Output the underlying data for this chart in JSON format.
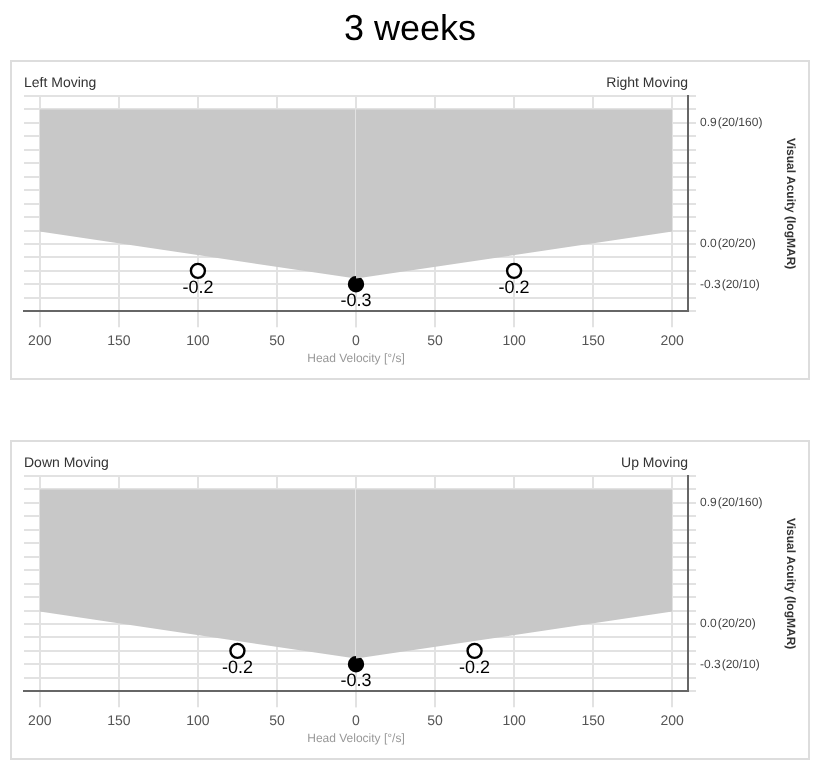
{
  "chart_data": [
    {
      "type": "scatter",
      "xlabel": "Head Velocity [°/s]",
      "annotations": [
        "Left Moving"
      ],
      "xlim": [
        210,
        0
      ],
      "xticks": [
        200,
        150,
        100,
        50,
        0
      ],
      "ylim": [
        -0.5,
        1.1
      ],
      "yticks": [
        {
          "value": -0.5,
          "label": null
        },
        {
          "value": -0.4,
          "label": null
        },
        {
          "value": -0.3,
          "label": null
        },
        {
          "value": -0.2,
          "label": null
        },
        {
          "value": -0.1,
          "label": null
        },
        {
          "value": 0,
          "label": null
        },
        {
          "value": 0.1,
          "label": null
        },
        {
          "value": 0.2,
          "label": null
        },
        {
          "value": 0.3,
          "label": null
        },
        {
          "value": 0.4,
          "label": null
        },
        {
          "value": 0.5,
          "label": null
        },
        {
          "value": 0.6,
          "label": null
        },
        {
          "value": 0.7,
          "label": null
        },
        {
          "value": 0.8,
          "label": null
        },
        {
          "value": 0.9,
          "label": null
        },
        {
          "value": 1.0,
          "label": null
        },
        {
          "value": 1.1,
          "label": null
        }
      ],
      "tick_labels": "x",
      "grid": true,
      "series": [
        {
          "type": "line",
          "color": "#c8c8c8",
          "marker": "none",
          "x": [
            200,
            0
          ],
          "values": [
            0.1,
            -0.25
          ],
          "lower": [
            0.1,
            -0.25
          ],
          "upper": [
            1.0,
            1.0
          ]
        },
        {
          "type": "scatter",
          "color": "#000000",
          "marker": "circle",
          "colors": [
            "#ffffff"
          ],
          "x": [
            100
          ],
          "values": [
            -0.2
          ],
          "value_labels": [
            "-0.2"
          ]
        }
      ]
    },
    {
      "type": "scatter",
      "title": "3 weeks",
      "ylabel": "Visual Acuity (logMAR)",
      "annotations": [
        "Right Moving",
        "(20/160)",
        "(20/20)",
        "(20/10)"
      ],
      "xlim": [
        0,
        210
      ],
      "xticks": [
        {
          "value": 0,
          "label": null
        },
        50,
        100,
        150,
        200
      ],
      "ylim": [
        -0.5,
        1.1
      ],
      "yticks": [
        {
          "value": -0.5,
          "label": null
        },
        {
          "value": -0.4,
          "label": null
        },
        -0.3,
        {
          "value": -0.2,
          "label": null
        },
        {
          "value": -0.1,
          "label": null
        },
        {
          "value": 0,
          "label": "0.0"
        },
        {
          "value": 0.1,
          "label": null
        },
        {
          "value": 0.2,
          "label": null
        },
        {
          "value": 0.3,
          "label": null
        },
        {
          "value": 0.4,
          "label": null
        },
        {
          "value": 0.5,
          "label": null
        },
        {
          "value": 0.6,
          "label": null
        },
        {
          "value": 0.7,
          "label": null
        },
        {
          "value": 0.8,
          "label": null
        },
        0.9,
        {
          "value": 1.0,
          "label": null
        },
        {
          "value": 1.1,
          "label": null
        }
      ],
      "grid": true,
      "series": [
        {
          "type": "line",
          "color": "#c8c8c8",
          "marker": "none",
          "x": [
            0,
            200
          ],
          "values": [
            -0.25,
            0.1
          ],
          "lower": [
            -0.25,
            0.1
          ],
          "upper": [
            1.0,
            1.0
          ]
        },
        {
          "type": "scatter",
          "color": "#000000",
          "marker": "circle",
          "colors": [
            "#000000",
            "#ffffff"
          ],
          "x": [
            0,
            100
          ],
          "values": [
            -0.3,
            -0.2
          ],
          "value_labels": [
            "-0.3",
            "-0.2"
          ]
        }
      ]
    },
    {
      "type": "scatter",
      "xlabel": "Head Velocity [°/s]",
      "annotations": [
        "Down Moving"
      ],
      "xlim": [
        210,
        0
      ],
      "xticks": [
        200,
        150,
        100,
        50,
        0
      ],
      "ylim": [
        -0.5,
        1.1
      ],
      "yticks": [
        {
          "value": -0.5,
          "label": null
        },
        {
          "value": -0.4,
          "label": null
        },
        {
          "value": -0.3,
          "label": null
        },
        {
          "value": -0.2,
          "label": null
        },
        {
          "value": -0.1,
          "label": null
        },
        {
          "value": 0,
          "label": null
        },
        {
          "value": 0.1,
          "label": null
        },
        {
          "value": 0.2,
          "label": null
        },
        {
          "value": 0.3,
          "label": null
        },
        {
          "value": 0.4,
          "label": null
        },
        {
          "value": 0.5,
          "label": null
        },
        {
          "value": 0.6,
          "label": null
        },
        {
          "value": 0.7,
          "label": null
        },
        {
          "value": 0.8,
          "label": null
        },
        {
          "value": 0.9,
          "label": null
        },
        {
          "value": 1.0,
          "label": null
        },
        {
          "value": 1.1,
          "label": null
        }
      ],
      "tick_labels": "x",
      "grid": true,
      "series": [
        {
          "type": "line",
          "color": "#c8c8c8",
          "marker": "none",
          "x": [
            200,
            0
          ],
          "values": [
            0.1,
            -0.25
          ],
          "lower": [
            0.1,
            -0.25
          ],
          "upper": [
            1.0,
            1.0
          ]
        },
        {
          "type": "scatter",
          "color": "#000000",
          "marker": "circle",
          "colors": [
            "#ffffff"
          ],
          "x": [
            75
          ],
          "values": [
            -0.2
          ],
          "value_labels": [
            "-0.2"
          ]
        }
      ]
    },
    {
      "type": "scatter",
      "ylabel": "Visual Acuity (logMAR)",
      "annotations": [
        "Up Moving",
        "(20/160)",
        "(20/20)",
        "(20/10)"
      ],
      "xlim": [
        0,
        210
      ],
      "xticks": [
        {
          "value": 0,
          "label": null
        },
        50,
        100,
        150,
        200
      ],
      "ylim": [
        -0.5,
        1.1
      ],
      "yticks": [
        {
          "value": -0.5,
          "label": null
        },
        {
          "value": -0.4,
          "label": null
        },
        -0.3,
        {
          "value": -0.2,
          "label": null
        },
        {
          "value": -0.1,
          "label": null
        },
        {
          "value": 0,
          "label": "0.0"
        },
        {
          "value": 0.1,
          "label": null
        },
        {
          "value": 0.2,
          "label": null
        },
        {
          "value": 0.3,
          "label": null
        },
        {
          "value": 0.4,
          "label": null
        },
        {
          "value": 0.5,
          "label": null
        },
        {
          "value": 0.6,
          "label": null
        },
        {
          "value": 0.7,
          "label": null
        },
        {
          "value": 0.8,
          "label": null
        },
        0.9,
        {
          "value": 1.0,
          "label": null
        },
        {
          "value": 1.1,
          "label": null
        }
      ],
      "grid": true,
      "series": [
        {
          "type": "line",
          "color": "#c8c8c8",
          "marker": "none",
          "x": [
            0,
            200
          ],
          "values": [
            -0.25,
            0.1
          ],
          "lower": [
            -0.25,
            0.1
          ],
          "upper": [
            1.0,
            1.0
          ]
        },
        {
          "type": "scatter",
          "color": "#000000",
          "marker": "circle",
          "colors": [
            "#000000",
            "#ffffff"
          ],
          "x": [
            0,
            75
          ],
          "values": [
            -0.3,
            -0.2
          ],
          "value_labels": [
            "-0.3",
            "-0.2"
          ]
        }
      ]
    }
  ]
}
